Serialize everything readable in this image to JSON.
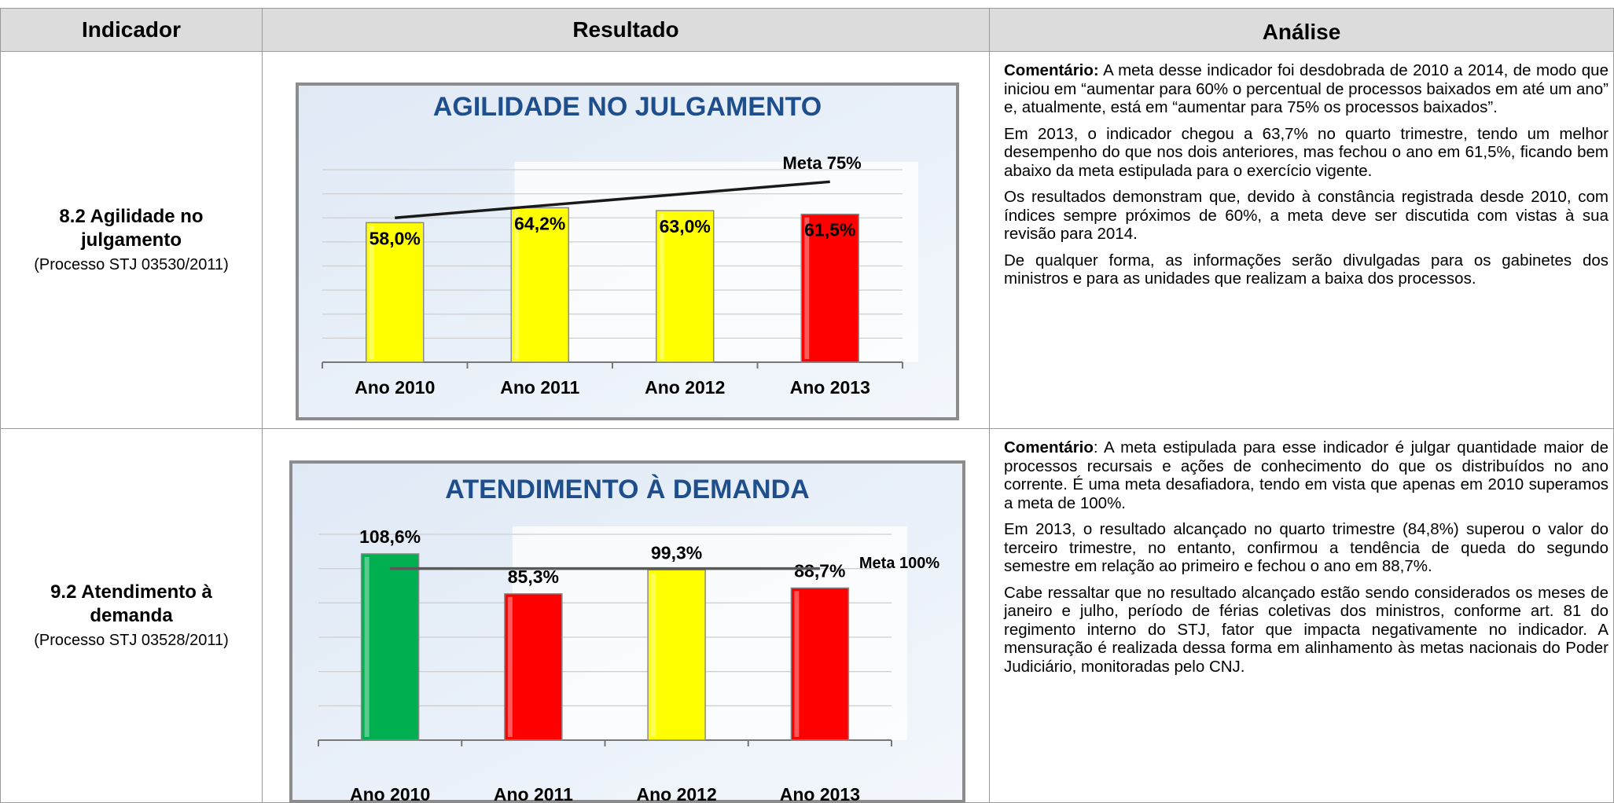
{
  "header": [
    "Indicador",
    "Resultado",
    "Análise"
  ],
  "rows": [
    {
      "indicator": "8.2 Agilidade no julgamento",
      "process": "(Processo STJ 03530/2011)",
      "chart_data": {
        "type": "bar",
        "title": "AGILIDADE NO JULGAMENTO",
        "categories": [
          "Ano 2010",
          "Ano 2011",
          "Ano 2012",
          "Ano 2013"
        ],
        "values": [
          58.0,
          64.2,
          63.0,
          61.5
        ],
        "value_labels": [
          "58,0%",
          "64,2%",
          "63,0%",
          "61,5%"
        ],
        "colors": [
          "#ffff00",
          "#ffff00",
          "#ffff00",
          "#ff0000"
        ],
        "target_line": {
          "name": "Meta 75%",
          "color": "#1a1a1a",
          "values": [
            60,
            65,
            70,
            75
          ]
        },
        "ylim": [
          0,
          80
        ],
        "yticks": [
          0,
          10,
          20,
          30,
          40,
          50,
          60,
          70,
          80
        ],
        "grid": true
      },
      "analysis": [
        {
          "label": "Comentário:",
          "text": " A meta desse indicador foi desdobrada de 2010 a 2014, de modo que iniciou em “aumentar para 60% o percentual de processos baixados em até um ano” e, atualmente, está em “aumentar para 75% os processos baixados”."
        },
        {
          "text": "Em 2013, o indicador chegou a 63,7% no quarto trimestre, tendo um melhor desempenho do que nos dois anteriores, mas fechou o ano em 61,5%, ficando bem abaixo da meta estipulada para o exercício vigente."
        },
        {
          "text": "Os resultados demonstram que, devido à constância registrada desde 2010, com índices sempre próximos de 60%, a meta deve ser discutida com vistas à sua revisão para 2014."
        },
        {
          "text": "De qualquer forma, as informações serão divulgadas para os gabinetes dos ministros e para as unidades que realizam a baixa dos processos."
        }
      ]
    },
    {
      "indicator": "9.2 Atendimento à demanda",
      "process": "(Processo STJ 03528/2011)",
      "chart_data": {
        "type": "bar",
        "title": "ATENDIMENTO À DEMANDA",
        "categories": [
          "Ano 2010",
          "Ano 2011",
          "Ano 2012",
          "Ano 2013"
        ],
        "values": [
          108.6,
          85.3,
          99.3,
          88.7
        ],
        "value_labels": [
          "108,6%",
          "85,3%",
          "99,3%",
          "88,7%"
        ],
        "colors": [
          "#00b050",
          "#ff0000",
          "#ffff00",
          "#ff0000"
        ],
        "target_line": {
          "name": "Meta 100%",
          "color": "#595959",
          "values": [
            100,
            100,
            100,
            100
          ]
        },
        "ylim": [
          0,
          120
        ],
        "yticks": [
          0,
          20,
          40,
          60,
          80,
          100,
          120
        ],
        "grid": true
      },
      "analysis": [
        {
          "label": "Comentário",
          "text": ": A meta estipulada para esse indicador é julgar quantidade maior de processos recursais e ações de conhecimento do que os distribuídos no ano corrente. É uma meta desafiadora, tendo em vista que apenas em 2010 superamos a meta de 100%."
        },
        {
          "text": "Em 2013, o  resultado alcançado no quarto trimestre (84,8%) superou o valor do terceiro trimestre, no entanto, confirmou a tendência de queda do segundo semestre em relação ao primeiro e fechou o ano em 88,7%."
        },
        {
          "text": "Cabe ressaltar que no resultado alcançado estão sendo considerados os meses de janeiro e julho, período de férias coletivas dos ministros, conforme art. 81 do regimento interno do STJ, fator que impacta negativamente no indicador.  A mensuração é realizada dessa forma em alinhamento às metas nacionais do Poder Judiciário, monitoradas pelo CNJ."
        }
      ]
    }
  ]
}
